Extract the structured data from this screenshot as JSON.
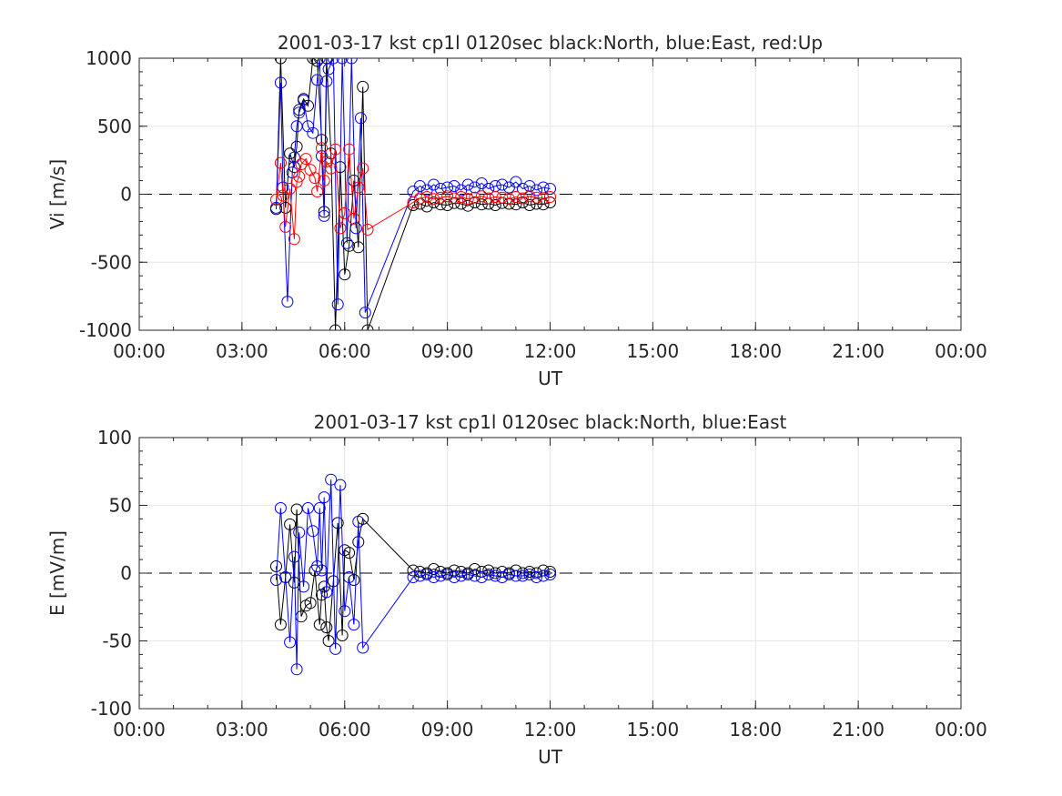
{
  "chart_data": [
    {
      "type": "line",
      "title": "2001-03-17 kst cp1l 0120sec black:North, blue:East, red:Up",
      "xlabel": "UT",
      "ylabel": "Vi [m/s]",
      "xlim": [
        0,
        24
      ],
      "ylim": [
        -1000,
        1000
      ],
      "xtick_values": [
        0,
        3,
        6,
        9,
        12,
        15,
        18,
        21,
        24
      ],
      "xtick_labels": [
        "00:00",
        "03:00",
        "06:00",
        "09:00",
        "12:00",
        "15:00",
        "18:00",
        "21:00",
        "00:00"
      ],
      "ytick_values": [
        -1000,
        -500,
        0,
        500,
        1000
      ],
      "ytick_labels": [
        "-1000",
        "-500",
        "0",
        "500",
        "1000"
      ],
      "grid": true,
      "zero_line": true,
      "series": [
        {
          "color": "#000000",
          "x": [
            4.0,
            4.13,
            4.27,
            4.4,
            4.53,
            4.6,
            4.67,
            4.8,
            4.93,
            5.07,
            5.2,
            5.33,
            5.4,
            5.47,
            5.6,
            5.73,
            5.87,
            6.0,
            6.13,
            6.27,
            6.4,
            6.53,
            6.67,
            8.0,
            8.2,
            8.4,
            8.6,
            8.8,
            9.0,
            9.2,
            9.4,
            9.6,
            9.8,
            10.0,
            10.2,
            10.4,
            10.6,
            10.8,
            11.0,
            11.2,
            11.4,
            11.6,
            11.8,
            12.0
          ],
          "y": [
            -110,
            1000,
            -100,
            300,
            200,
            350,
            620,
            700,
            650,
            1000,
            980,
            400,
            -130,
            1000,
            300,
            -1000,
            200,
            -590,
            -380,
            100,
            -390,
            790,
            -1000,
            -80,
            -70,
            -90,
            -60,
            -75,
            -80,
            -65,
            -70,
            -85,
            -60,
            -75,
            -70,
            -80,
            -65,
            -70,
            -75,
            -60,
            -80,
            -70,
            -75,
            -60
          ]
        },
        {
          "color": "#0000ff",
          "x": [
            4.0,
            4.13,
            4.2,
            4.33,
            4.47,
            4.53,
            4.6,
            4.67,
            4.8,
            4.93,
            5.07,
            5.2,
            5.27,
            5.33,
            5.4,
            5.47,
            5.53,
            5.67,
            5.8,
            5.93,
            6.07,
            6.2,
            6.33,
            6.47,
            6.6,
            8.0,
            8.2,
            8.4,
            8.6,
            8.8,
            9.0,
            9.2,
            9.4,
            9.6,
            9.8,
            10.0,
            10.2,
            10.4,
            10.6,
            10.8,
            11.0,
            11.2,
            11.4,
            11.6,
            11.8,
            12.0
          ],
          "y": [
            -100,
            820,
            50,
            -790,
            160,
            270,
            500,
            600,
            690,
            500,
            450,
            840,
            1000,
            280,
            -160,
            830,
            920,
            1000,
            -810,
            1000,
            -360,
            1000,
            -250,
            560,
            -870,
            20,
            60,
            30,
            70,
            40,
            50,
            60,
            30,
            70,
            50,
            80,
            40,
            60,
            70,
            50,
            90,
            40,
            60,
            30,
            50,
            40
          ]
        },
        {
          "color": "#ff0000",
          "x": [
            4.0,
            4.13,
            4.2,
            4.27,
            4.4,
            4.53,
            4.6,
            4.67,
            4.73,
            4.87,
            5.0,
            5.13,
            5.2,
            5.33,
            5.4,
            5.47,
            5.6,
            5.73,
            5.87,
            6.0,
            6.13,
            6.27,
            6.4,
            6.53,
            6.67,
            8.0,
            8.2,
            8.4,
            8.6,
            8.8,
            9.0,
            9.2,
            9.4,
            9.6,
            9.8,
            10.0,
            10.2,
            10.4,
            10.6,
            10.8,
            11.0,
            11.2,
            11.4,
            11.6,
            11.8,
            12.0
          ],
          "y": [
            -40,
            230,
            -10,
            -240,
            40,
            -330,
            90,
            130,
            220,
            260,
            180,
            120,
            20,
            340,
            100,
            240,
            190,
            330,
            -250,
            -140,
            330,
            -180,
            50,
            190,
            -260,
            -60,
            -30,
            -20,
            -35,
            -25,
            -15,
            -30,
            -20,
            -35,
            -25,
            -15,
            -30,
            -20,
            -25,
            -35,
            -20,
            -30,
            -15,
            -25,
            -30,
            -20
          ]
        }
      ]
    },
    {
      "type": "line",
      "title": "2001-03-17 kst cp1l 0120sec black:North, blue:East",
      "xlabel": "UT",
      "ylabel": "E [mV/m]",
      "xlim": [
        0,
        24
      ],
      "ylim": [
        -100,
        100
      ],
      "xtick_values": [
        0,
        3,
        6,
        9,
        12,
        15,
        18,
        21,
        24
      ],
      "xtick_labels": [
        "00:00",
        "03:00",
        "06:00",
        "09:00",
        "12:00",
        "15:00",
        "18:00",
        "21:00",
        "00:00"
      ],
      "ytick_values": [
        -100,
        -50,
        0,
        50,
        100
      ],
      "ytick_labels": [
        "-100",
        "-50",
        "0",
        "50",
        "100"
      ],
      "grid": true,
      "zero_line": true,
      "series": [
        {
          "color": "#000000",
          "x": [
            4.0,
            4.13,
            4.27,
            4.4,
            4.53,
            4.6,
            4.73,
            4.87,
            5.0,
            5.13,
            5.27,
            5.33,
            5.4,
            5.47,
            5.53,
            5.67,
            5.8,
            5.93,
            6.0,
            6.13,
            6.27,
            6.4,
            6.53,
            8.0,
            8.2,
            8.4,
            8.6,
            8.8,
            9.0,
            9.2,
            9.4,
            9.6,
            9.8,
            10.0,
            10.2,
            10.4,
            10.6,
            10.8,
            11.0,
            11.2,
            11.4,
            11.6,
            11.8,
            12.0
          ],
          "y": [
            5,
            -38,
            -3,
            36,
            -7,
            47,
            -32,
            -24,
            -22,
            2,
            -38,
            -16,
            -10,
            -40,
            -50,
            -6,
            37,
            -46,
            17,
            15,
            -5,
            23,
            40,
            2,
            1,
            0,
            3,
            1,
            0,
            2,
            1,
            0,
            3,
            1,
            2,
            0,
            1,
            0,
            2,
            0,
            1,
            0,
            2,
            1
          ]
        },
        {
          "color": "#0000ff",
          "x": [
            4.0,
            4.13,
            4.27,
            4.4,
            4.53,
            4.6,
            4.67,
            4.8,
            4.93,
            5.07,
            5.2,
            5.27,
            5.33,
            5.4,
            5.47,
            5.6,
            5.73,
            5.87,
            6.0,
            6.13,
            6.27,
            6.4,
            6.53,
            8.0,
            8.2,
            8.4,
            8.6,
            8.8,
            9.0,
            9.2,
            9.4,
            9.6,
            9.8,
            10.0,
            10.2,
            10.4,
            10.6,
            10.8,
            11.0,
            11.2,
            11.4,
            11.6,
            11.8,
            12.0
          ],
          "y": [
            -5,
            48,
            -3,
            -51,
            12,
            -71,
            30,
            -10,
            48,
            31,
            5,
            48,
            2,
            56,
            -14,
            69,
            -56,
            65,
            -28,
            -3,
            -38,
            38,
            -55,
            -3,
            -2,
            -1,
            -3,
            -2,
            -1,
            -3,
            -2,
            -1,
            -2,
            -3,
            -1,
            -2,
            -3,
            -1,
            -2,
            -2,
            -1,
            -3,
            -2,
            -1
          ]
        }
      ]
    }
  ]
}
